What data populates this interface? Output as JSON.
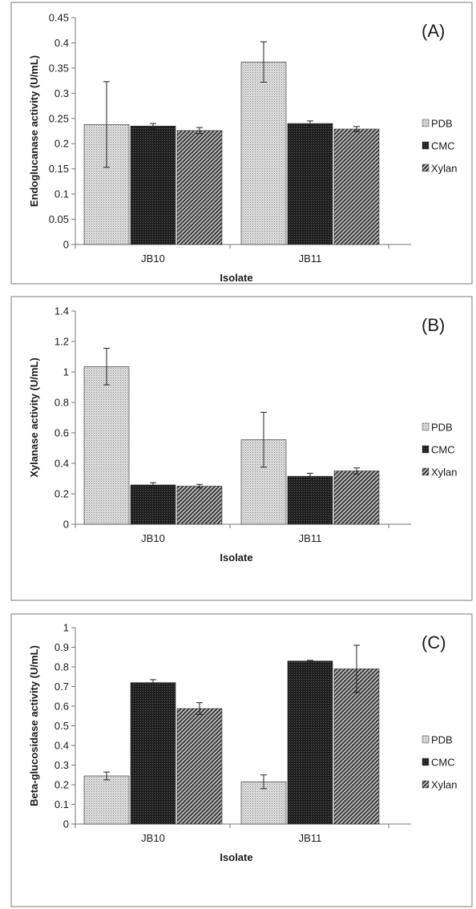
{
  "colors": {
    "PDB": "#c8c8c8",
    "CMC": "#2f2f2f",
    "Xylan": "#5e5e5e"
  },
  "chart_data": [
    {
      "type": "bar",
      "panel_tag": "(A)",
      "categories": [
        "JB10",
        "JB11"
      ],
      "xlabel": "Isolate",
      "ylabel": "Endoglucanase activity (U/mL)",
      "ylim": [
        0,
        0.45
      ],
      "yticks": [
        "0",
        "0.05",
        "0.1",
        "0.15",
        "0.2",
        "0.25",
        "0.3",
        "0.35",
        "0.4",
        "0.45"
      ],
      "ytick_values": [
        0,
        0.05,
        0.1,
        0.15,
        0.2,
        0.25,
        0.3,
        0.35,
        0.4,
        0.45
      ],
      "legend_position": "right",
      "series": [
        {
          "name": "PDB",
          "values": [
            0.238,
            0.362
          ],
          "errors": [
            0.085,
            0.04
          ]
        },
        {
          "name": "CMC",
          "values": [
            0.235,
            0.24
          ],
          "errors": [
            0.005,
            0.005
          ]
        },
        {
          "name": "Xylan",
          "values": [
            0.226,
            0.229
          ],
          "errors": [
            0.006,
            0.005
          ]
        }
      ]
    },
    {
      "type": "bar",
      "panel_tag": "(B)",
      "categories": [
        "JB10",
        "JB11"
      ],
      "xlabel": "Isolate",
      "ylabel": "Xylanase activity (U/mL)",
      "ylim": [
        0,
        1.4
      ],
      "yticks": [
        "0",
        "0.2",
        "0.4",
        "0.6",
        "0.8",
        "1",
        "1.2",
        "1.4"
      ],
      "ytick_values": [
        0,
        0.2,
        0.4,
        0.6,
        0.8,
        1,
        1.2,
        1.4
      ],
      "legend_position": "right",
      "series": [
        {
          "name": "PDB",
          "values": [
            1.035,
            0.555
          ],
          "errors": [
            0.12,
            0.18
          ]
        },
        {
          "name": "CMC",
          "values": [
            0.258,
            0.315
          ],
          "errors": [
            0.015,
            0.02
          ]
        },
        {
          "name": "Xylan",
          "values": [
            0.25,
            0.35
          ],
          "errors": [
            0.012,
            0.02
          ]
        }
      ]
    },
    {
      "type": "bar",
      "panel_tag": "(C)",
      "categories": [
        "JB10",
        "JB11"
      ],
      "xlabel": "Isolate",
      "ylabel": "Beta-glucosidase activity (U/mL)",
      "ylim": [
        0,
        1
      ],
      "yticks": [
        "0",
        "0.1",
        "0.2",
        "0.3",
        "0.4",
        "0.5",
        "0.6",
        "0.7",
        "0.8",
        "0.9",
        "1"
      ],
      "ytick_values": [
        0,
        0.1,
        0.2,
        0.3,
        0.4,
        0.5,
        0.6,
        0.7,
        0.8,
        0.9,
        1
      ],
      "legend_position": "right",
      "series": [
        {
          "name": "PDB",
          "values": [
            0.245,
            0.215
          ],
          "errors": [
            0.02,
            0.035
          ]
        },
        {
          "name": "CMC",
          "values": [
            0.72,
            0.83
          ],
          "errors": [
            0.015,
            0.003
          ]
        },
        {
          "name": "Xylan",
          "values": [
            0.588,
            0.79
          ],
          "errors": [
            0.03,
            0.12
          ]
        }
      ]
    }
  ]
}
